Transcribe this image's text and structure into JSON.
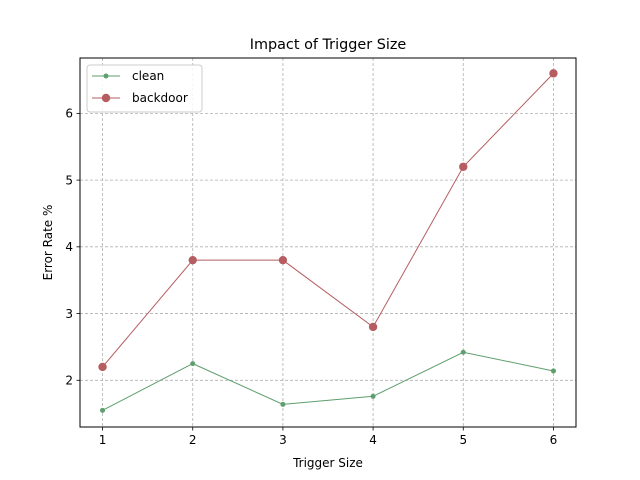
{
  "chart_data": {
    "type": "line",
    "title": "Impact of Trigger Size",
    "xlabel": "Trigger Size",
    "ylabel": "Error Rate %",
    "x": [
      1,
      2,
      3,
      4,
      5,
      6
    ],
    "xlim": [
      0.75,
      6.25
    ],
    "ylim": [
      1.3,
      6.83
    ],
    "xticks": [
      1,
      2,
      3,
      4,
      5,
      6
    ],
    "yticks": [
      2,
      3,
      4,
      5,
      6
    ],
    "grid": true,
    "legend_position": "upper-left",
    "series": [
      {
        "name": "clean",
        "values": [
          1.55,
          2.25,
          1.64,
          1.76,
          2.42,
          2.14
        ],
        "color": "#5f9e6e",
        "marker": "small-circle"
      },
      {
        "name": "backdoor",
        "values": [
          2.2,
          3.8,
          3.8,
          2.8,
          5.2,
          6.6
        ],
        "color": "#b55d60",
        "marker": "circle"
      }
    ]
  }
}
